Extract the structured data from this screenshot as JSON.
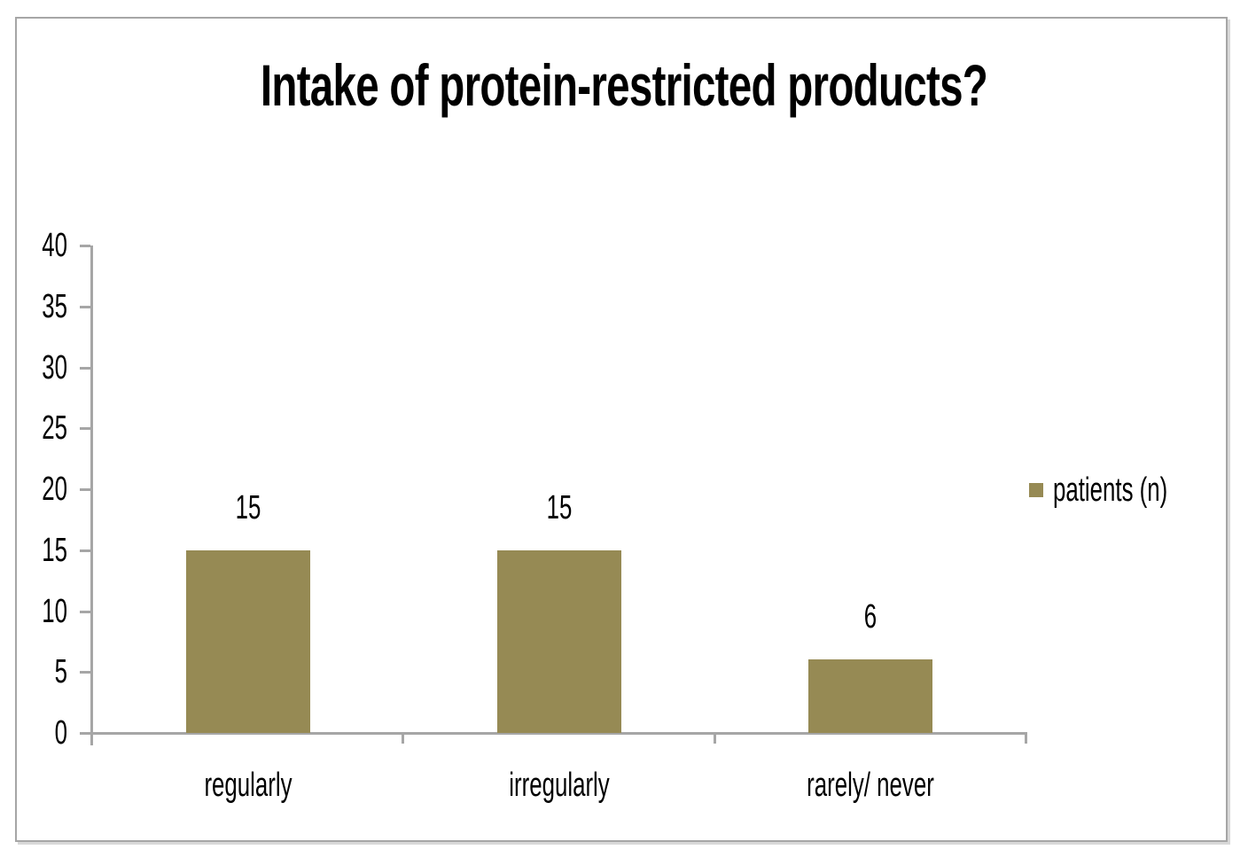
{
  "frame": {
    "border_color": "#A6A6A6",
    "background": "#FFFFFF"
  },
  "chart_data": {
    "type": "bar",
    "title": "Intake of protein-restricted products?",
    "categories": [
      "regularly",
      "irregularly",
      "rarely/ never"
    ],
    "series": [
      {
        "name": "patients (n)",
        "color": "#968A54",
        "values": [
          15,
          15,
          6
        ]
      }
    ],
    "data_labels_shown": true,
    "y_ticks": [
      0,
      5,
      10,
      15,
      20,
      25,
      30,
      35,
      40
    ],
    "ylim": [
      0,
      40
    ],
    "xlabel": "",
    "ylabel": "",
    "grid": false,
    "legend_position": "right-middle",
    "axis_color": "#A6A6A6",
    "text_color": "#000000"
  }
}
